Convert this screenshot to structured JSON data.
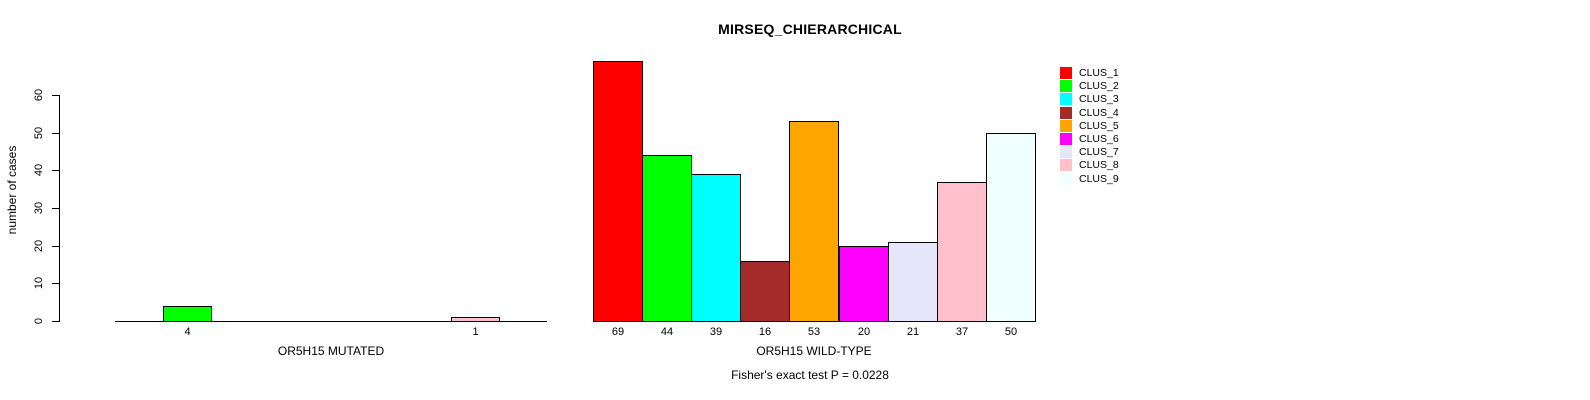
{
  "chart_data": {
    "type": "bar",
    "title": "MIRSEQ_CHIERARCHICAL",
    "ylabel": "number of cases",
    "yticks": [
      0,
      10,
      20,
      30,
      40,
      50,
      60
    ],
    "ylim": [
      0,
      69
    ],
    "grid": false,
    "annotation": "Fisher's exact test P = 0.0228",
    "legend": {
      "position": "right",
      "entries": [
        {
          "label": "CLUS_1",
          "color": "#FF0000"
        },
        {
          "label": "CLUS_2",
          "color": "#00FF00"
        },
        {
          "label": "CLUS_3",
          "color": "#00FFFF"
        },
        {
          "label": "CLUS_4",
          "color": "#A52A2A"
        },
        {
          "label": "CLUS_5",
          "color": "#FFA500"
        },
        {
          "label": "CLUS_6",
          "color": "#FF00FF"
        },
        {
          "label": "CLUS_7",
          "color": "#E6E6FA"
        },
        {
          "label": "CLUS_8",
          "color": "#FFC0CB"
        },
        {
          "label": "CLUS_9",
          "color": "#F0FFFF"
        }
      ]
    },
    "panels": [
      {
        "xlabel": "OR5H15 MUTATED",
        "categories": [
          "CLUS_1",
          "CLUS_2",
          "CLUS_3",
          "CLUS_4",
          "CLUS_5",
          "CLUS_6",
          "CLUS_7",
          "CLUS_8",
          "CLUS_9"
        ],
        "values": [
          0,
          4,
          0,
          0,
          0,
          0,
          0,
          1,
          0
        ],
        "bar_labels": [
          "",
          "4",
          "",
          "",
          "",
          "",
          "",
          "1",
          ""
        ],
        "colors": [
          "#FF0000",
          "#00FF00",
          "#00FFFF",
          "#A52A2A",
          "#FFA500",
          "#FF00FF",
          "#E6E6FA",
          "#FFC0CB",
          "#F0FFFF"
        ]
      },
      {
        "xlabel": "OR5H15 WILD-TYPE",
        "categories": [
          "CLUS_1",
          "CLUS_2",
          "CLUS_3",
          "CLUS_4",
          "CLUS_5",
          "CLUS_6",
          "CLUS_7",
          "CLUS_8",
          "CLUS_9"
        ],
        "values": [
          69,
          44,
          39,
          16,
          53,
          20,
          21,
          37,
          50
        ],
        "bar_labels": [
          "69",
          "44",
          "39",
          "16",
          "53",
          "20",
          "21",
          "37",
          "50"
        ],
        "colors": [
          "#FF0000",
          "#00FF00",
          "#00FFFF",
          "#A52A2A",
          "#FFA500",
          "#FF00FF",
          "#E6E6FA",
          "#FFC0CB",
          "#F0FFFF"
        ]
      }
    ]
  }
}
